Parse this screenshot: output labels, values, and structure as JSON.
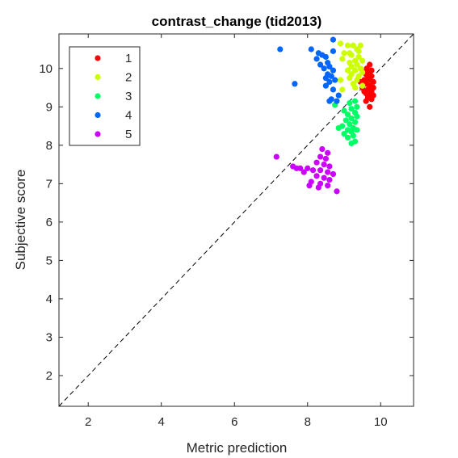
{
  "chart_data": {
    "type": "scatter",
    "title": "contrast_change (tid2013)",
    "xlabel": "Metric prediction",
    "ylabel": "Subjective score",
    "xlim": [
      1.2,
      10.9
    ],
    "ylim": [
      1.2,
      10.9
    ],
    "xticks": [
      2,
      4,
      6,
      8,
      10
    ],
    "yticks": [
      2,
      3,
      4,
      5,
      6,
      7,
      8,
      9,
      10
    ],
    "grid": false,
    "legend_position": "top-left",
    "reference_line": {
      "style": "dashed",
      "color": "#000000",
      "from": [
        1.2,
        1.2
      ],
      "to": [
        10.9,
        10.9
      ]
    },
    "series": [
      {
        "name": "1",
        "color": "#ff0000",
        "points": [
          [
            9.7,
            10.1
          ],
          [
            9.62,
            10.0
          ],
          [
            9.75,
            9.95
          ],
          [
            9.7,
            9.9
          ],
          [
            9.6,
            9.85
          ],
          [
            9.75,
            9.8
          ],
          [
            9.65,
            9.75
          ],
          [
            9.55,
            9.7
          ],
          [
            9.7,
            9.7
          ],
          [
            9.8,
            9.65
          ],
          [
            9.6,
            9.6
          ],
          [
            9.7,
            9.55
          ],
          [
            9.5,
            9.5
          ],
          [
            9.65,
            9.45
          ],
          [
            9.75,
            9.4
          ],
          [
            9.55,
            9.4
          ],
          [
            9.6,
            9.35
          ],
          [
            9.7,
            9.3
          ],
          [
            9.8,
            9.3
          ],
          [
            9.65,
            9.25
          ],
          [
            9.75,
            9.2
          ],
          [
            9.6,
            9.15
          ],
          [
            9.7,
            9.0
          ],
          [
            9.45,
            9.65
          ],
          [
            9.55,
            9.9
          ],
          [
            9.8,
            9.5
          ]
        ]
      },
      {
        "name": "2",
        "color": "#ccff00",
        "points": [
          [
            8.9,
            10.65
          ],
          [
            9.1,
            10.6
          ],
          [
            9.25,
            10.6
          ],
          [
            9.45,
            10.6
          ],
          [
            9.35,
            10.5
          ],
          [
            9.0,
            10.4
          ],
          [
            9.2,
            10.35
          ],
          [
            9.4,
            10.3
          ],
          [
            8.95,
            10.25
          ],
          [
            9.3,
            10.2
          ],
          [
            9.5,
            10.2
          ],
          [
            9.15,
            10.15
          ],
          [
            9.35,
            10.1
          ],
          [
            9.2,
            10.05
          ],
          [
            9.45,
            10.0
          ],
          [
            9.1,
            9.95
          ],
          [
            9.3,
            9.95
          ],
          [
            9.5,
            9.9
          ],
          [
            9.2,
            9.85
          ],
          [
            9.4,
            9.8
          ],
          [
            9.15,
            9.75
          ],
          [
            9.35,
            9.7
          ],
          [
            8.9,
            9.7
          ],
          [
            9.25,
            9.6
          ],
          [
            9.5,
            9.55
          ],
          [
            8.95,
            9.45
          ],
          [
            9.3,
            9.5
          ],
          [
            9.15,
            10.4
          ],
          [
            9.4,
            10.45
          ]
        ]
      },
      {
        "name": "3",
        "color": "#00ff66",
        "points": [
          [
            9.3,
            9.15
          ],
          [
            9.15,
            9.1
          ],
          [
            8.75,
            9.05
          ],
          [
            9.35,
            9.0
          ],
          [
            9.2,
            8.95
          ],
          [
            9.0,
            8.9
          ],
          [
            9.3,
            8.85
          ],
          [
            9.1,
            8.8
          ],
          [
            9.35,
            8.75
          ],
          [
            9.2,
            8.7
          ],
          [
            9.05,
            8.65
          ],
          [
            9.3,
            8.6
          ],
          [
            9.15,
            8.55
          ],
          [
            8.95,
            8.5
          ],
          [
            9.25,
            8.45
          ],
          [
            9.1,
            8.4
          ],
          [
            9.35,
            8.4
          ],
          [
            9.2,
            8.35
          ],
          [
            9.0,
            8.3
          ],
          [
            9.25,
            8.25
          ],
          [
            9.1,
            8.2
          ],
          [
            9.3,
            8.1
          ],
          [
            9.2,
            8.05
          ],
          [
            8.85,
            8.45
          ]
        ]
      },
      {
        "name": "4",
        "color": "#0066ff",
        "points": [
          [
            8.7,
            10.75
          ],
          [
            7.25,
            10.5
          ],
          [
            8.1,
            10.5
          ],
          [
            8.7,
            10.45
          ],
          [
            8.3,
            10.4
          ],
          [
            8.4,
            10.35
          ],
          [
            8.5,
            10.3
          ],
          [
            8.25,
            10.25
          ],
          [
            8.55,
            10.15
          ],
          [
            8.35,
            10.1
          ],
          [
            8.6,
            10.05
          ],
          [
            8.45,
            10.0
          ],
          [
            8.7,
            9.95
          ],
          [
            8.55,
            9.85
          ],
          [
            8.65,
            9.8
          ],
          [
            8.5,
            9.75
          ],
          [
            8.75,
            9.7
          ],
          [
            8.6,
            9.65
          ],
          [
            7.65,
            9.6
          ],
          [
            8.5,
            9.55
          ],
          [
            8.7,
            9.45
          ],
          [
            8.85,
            9.3
          ],
          [
            8.65,
            9.2
          ],
          [
            8.6,
            9.15
          ],
          [
            8.8,
            9.15
          ]
        ]
      },
      {
        "name": "5",
        "color": "#cc00ff",
        "points": [
          [
            7.15,
            7.7
          ],
          [
            8.4,
            7.9
          ],
          [
            8.55,
            7.8
          ],
          [
            8.35,
            7.7
          ],
          [
            8.5,
            7.65
          ],
          [
            8.25,
            7.55
          ],
          [
            8.45,
            7.5
          ],
          [
            7.6,
            7.45
          ],
          [
            8.6,
            7.45
          ],
          [
            7.8,
            7.4
          ],
          [
            8.0,
            7.4
          ],
          [
            8.15,
            7.35
          ],
          [
            8.35,
            7.35
          ],
          [
            8.55,
            7.3
          ],
          [
            7.9,
            7.3
          ],
          [
            8.7,
            7.25
          ],
          [
            8.25,
            7.2
          ],
          [
            8.45,
            7.15
          ],
          [
            8.6,
            7.1
          ],
          [
            8.1,
            7.05
          ],
          [
            8.35,
            7.0
          ],
          [
            8.55,
            6.95
          ],
          [
            8.05,
            6.95
          ],
          [
            8.3,
            6.9
          ],
          [
            8.8,
            6.8
          ],
          [
            7.7,
            7.4
          ]
        ]
      }
    ]
  }
}
